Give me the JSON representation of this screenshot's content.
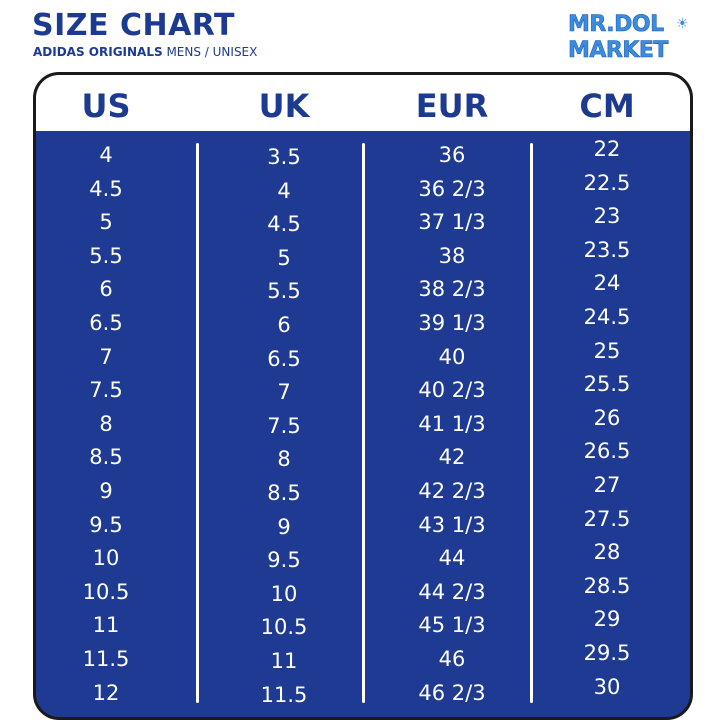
{
  "header": {
    "title": "SIZE CHART",
    "subtitle_brand": "ADIDAS ORIGINALS",
    "subtitle_rest": " MENS / UNISEX"
  },
  "logo": {
    "line1": "MR.DOL",
    "line2": "MARKET",
    "icon": "sun-icon"
  },
  "colors": {
    "navy": "#1f3a93",
    "heading_blue": "#1c3a8f",
    "logo_blue": "#3a8ce0"
  },
  "table": {
    "columns": [
      "US",
      "UK",
      "EUR",
      "CM"
    ],
    "us": [
      "4",
      "4.5",
      "5",
      "5.5",
      "6",
      "6.5",
      "7",
      "7.5",
      "8",
      "8.5",
      "9",
      "9.5",
      "10",
      "10.5",
      "11",
      "11.5",
      "12"
    ],
    "uk": [
      "3.5",
      "4",
      "4.5",
      "5",
      "5.5",
      "6",
      "6.5",
      "7",
      "7.5",
      "8",
      "8.5",
      "9",
      "9.5",
      "10",
      "10.5",
      "11",
      "11.5"
    ],
    "eur": [
      "36",
      "36 2/3",
      "37 1/3",
      "38",
      "38 2/3",
      "39 1/3",
      "40",
      "40 2/3",
      "41 1/3",
      "42",
      "42 2/3",
      "43 1/3",
      "44",
      "44 2/3",
      "45 1/3",
      "46",
      "46 2/3"
    ],
    "cm": [
      "22",
      "22.5",
      "23",
      "23.5",
      "24",
      "24.5",
      "25",
      "25.5",
      "26",
      "26.5",
      "27",
      "27.5",
      "28",
      "28.5",
      "29",
      "29.5",
      "30"
    ]
  }
}
